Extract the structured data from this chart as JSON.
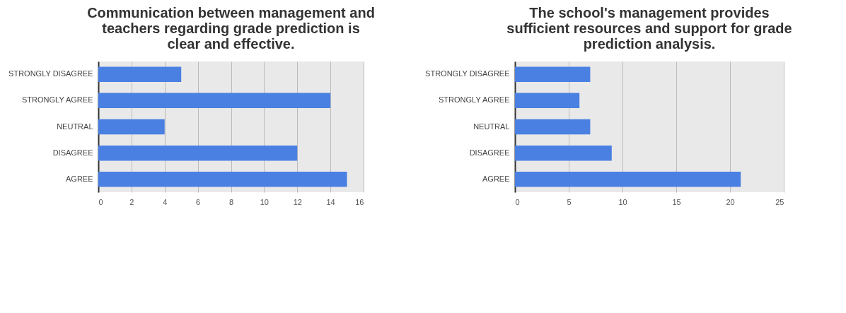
{
  "chart_data": [
    {
      "type": "bar",
      "orientation": "horizontal",
      "title": "Communication between management and teachers regarding grade prediction is clear and effective.",
      "categories": [
        "STRONGLY DISAGREE",
        "STRONGLY AGREE",
        "NEUTRAL",
        "DISAGREE",
        "AGREE"
      ],
      "values": [
        5,
        14,
        4,
        12,
        15
      ],
      "color": "#4a80e2",
      "xlim": [
        0,
        16
      ],
      "xticks": [
        0,
        2,
        4,
        6,
        8,
        10,
        12,
        14,
        16
      ],
      "grid": "x"
    },
    {
      "type": "bar",
      "orientation": "horizontal",
      "title": "The school's management provides sufficient resources and support for grade prediction analysis.",
      "categories": [
        "STRONGLY DISAGREE",
        "STRONGLY AGREE",
        "NEUTRAL",
        "DISAGREE",
        "AGREE"
      ],
      "values": [
        7,
        6,
        7,
        9,
        21
      ],
      "color": "#4a80e2",
      "xlim": [
        0,
        25
      ],
      "xticks": [
        0,
        5,
        10,
        15,
        20,
        25
      ],
      "grid": "x"
    }
  ]
}
